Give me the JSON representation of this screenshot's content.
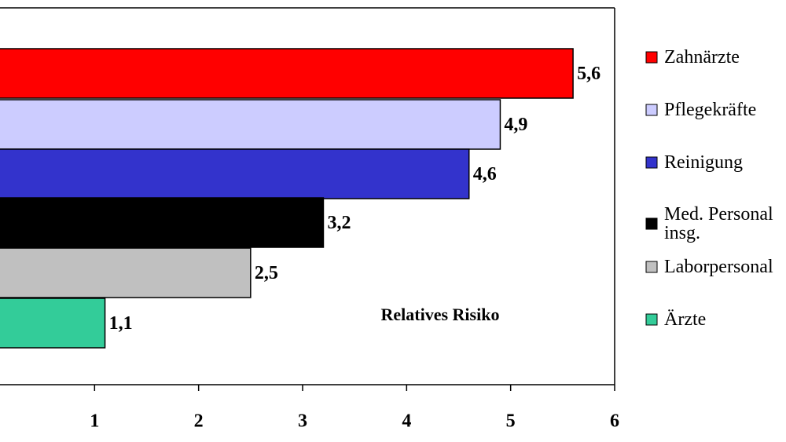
{
  "chart_data": {
    "type": "barh",
    "categories": [
      "Zahnärzte",
      "Pflegekräfte",
      "Reinigung",
      "Med. Personal insg.",
      "Laborpersonal",
      "Ärzte"
    ],
    "values": [
      5.6,
      4.9,
      4.6,
      3.2,
      2.5,
      1.1
    ],
    "value_labels": [
      "5,6",
      "4,9",
      "4,6",
      "3,2",
      "2,5",
      "1,1"
    ],
    "colors": [
      "#ff0000",
      "#ccccff",
      "#3333cc",
      "#000000",
      "#c0c0c0",
      "#33cc99"
    ],
    "annotation": "Relatives Risiko",
    "xlim": [
      0,
      6
    ],
    "xticks": [
      1,
      2,
      3,
      4,
      5,
      6
    ]
  }
}
